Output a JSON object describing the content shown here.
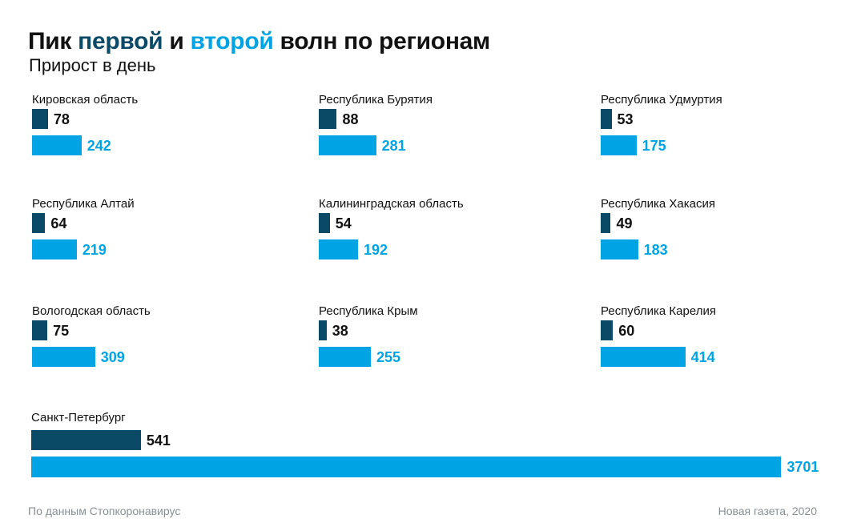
{
  "header": {
    "title_part1": "Пик ",
    "title_word_first": "первой",
    "title_part2": " и ",
    "title_word_second": "второй",
    "title_part3": " волн по регионам",
    "subtitle": "Прирост в день"
  },
  "colors": {
    "first_wave": "#0a4a67",
    "second_wave": "#00a4e4",
    "first_value_text": "#111111",
    "second_value_text": "#00a4e4"
  },
  "chart_data": {
    "type": "bar",
    "orientation": "horizontal",
    "series_names": [
      "первой",
      "второй"
    ],
    "regions": [
      {
        "name": "Кировская область",
        "first": 78,
        "second": 242
      },
      {
        "name": "Республика Бурятия",
        "first": 88,
        "second": 281
      },
      {
        "name": "Республика Удмуртия",
        "first": 53,
        "second": 175
      },
      {
        "name": "Республика Алтай",
        "first": 64,
        "second": 219
      },
      {
        "name": "Калининградская область",
        "first": 54,
        "second": 192
      },
      {
        "name": "Республика Хакасия",
        "first": 49,
        "second": 183
      },
      {
        "name": "Вологодская область",
        "first": 75,
        "second": 309
      },
      {
        "name": "Республика Крым",
        "first": 38,
        "second": 255
      },
      {
        "name": "Республика Карелия",
        "first": 60,
        "second": 414
      },
      {
        "name": "Санкт-Петербург",
        "first": 541,
        "second": 3701
      }
    ]
  },
  "footer": {
    "source": "По данным Стопкоронавирус",
    "credit": "Новая газета, 2020"
  }
}
